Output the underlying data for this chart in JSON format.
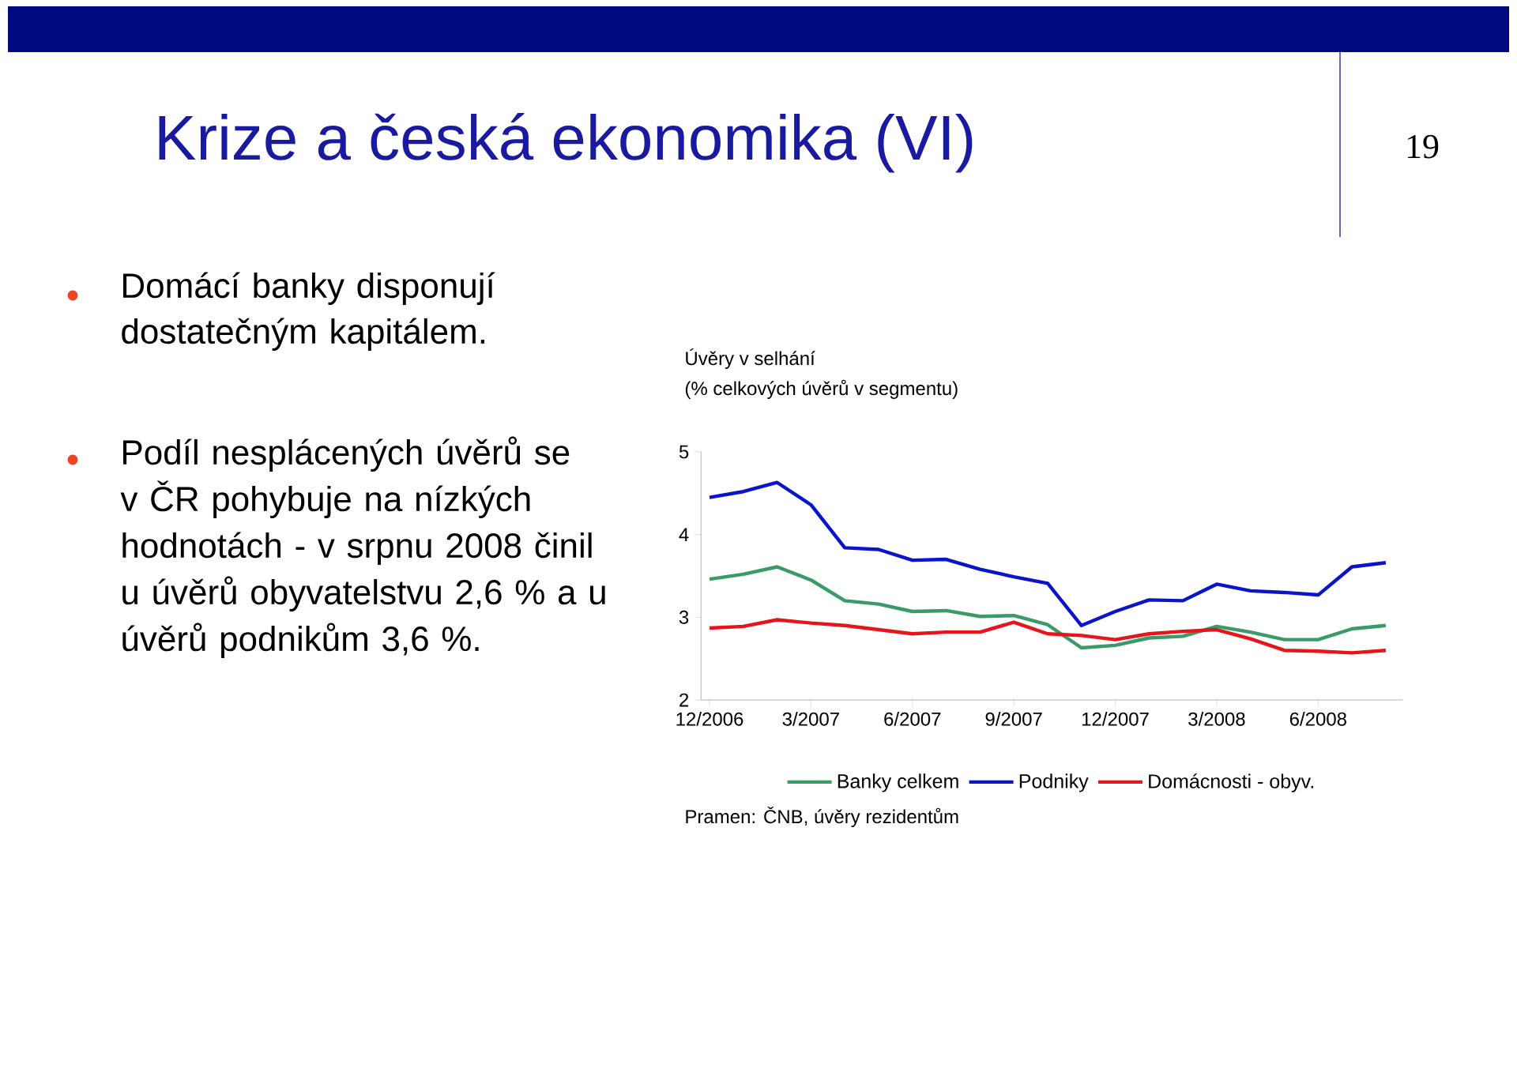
{
  "chart_data": {
    "type": "line",
    "title": "Úvěry v selhání",
    "subtitle": "(% celkových úvěrů v segmentu)",
    "categories": [
      "12/2006",
      null,
      null,
      "3/2007",
      null,
      null,
      "6/2007",
      null,
      null,
      "9/2007",
      null,
      null,
      "12/2007",
      null,
      null,
      "3/2008",
      null,
      null,
      "6/2008",
      null,
      null
    ],
    "series": [
      {
        "name": "Banky celkem",
        "color": "#3a9a68",
        "values": [
          3.46,
          3.52,
          3.61,
          3.45,
          3.2,
          3.16,
          3.07,
          3.08,
          3.01,
          3.02,
          2.91,
          2.63,
          2.66,
          2.75,
          2.77,
          2.89,
          2.82,
          2.73,
          2.73,
          2.86,
          2.9
        ]
      },
      {
        "name": "Podniky",
        "color": "#0a14c8",
        "values": [
          4.45,
          4.52,
          4.63,
          4.36,
          3.84,
          3.82,
          3.69,
          3.7,
          3.58,
          3.49,
          3.41,
          2.9,
          3.07,
          3.21,
          3.2,
          3.4,
          3.32,
          3.3,
          3.27,
          3.61,
          3.66
        ]
      },
      {
        "name": "Domácnosti - obyv.",
        "color": "#e8141c",
        "values": [
          2.87,
          2.89,
          2.97,
          2.93,
          2.9,
          2.85,
          2.8,
          2.82,
          2.82,
          2.94,
          2.8,
          2.78,
          2.73,
          2.8,
          2.83,
          2.85,
          2.74,
          2.6,
          2.59,
          2.57,
          2.6
        ]
      }
    ],
    "ylim": [
      2,
      5
    ],
    "yticks": [
      2,
      3,
      4,
      5
    ],
    "legend": "bottom",
    "marker": "none",
    "line_style": "solid",
    "annotations": [
      "Krize a česká ekonomika (VI)",
      "19",
      "Domácí banky disponují dostatečným kapitálem.",
      "Podíl nesplácených úvěrů se v ČR pohybuje na nízkých hodnotách - v srpnu 2008 činil u úvěrů obyvatelstvu 2,6 % a u úvěrů podnikům 3,6 %.",
      "Pramen: ČNB, úvěry rezidentům"
    ]
  }
}
